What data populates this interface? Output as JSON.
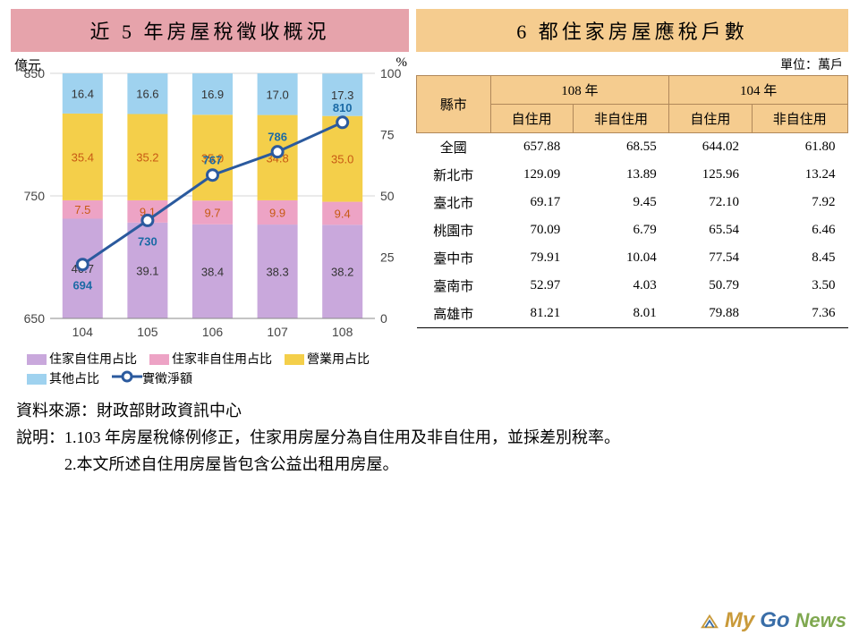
{
  "left": {
    "title": "近 5 年房屋稅徵收概況",
    "y_left_label": "億元",
    "y_right_label": "%",
    "y_left": {
      "min": 650,
      "max": 850,
      "ticks": [
        650,
        750,
        850
      ]
    },
    "y_right": {
      "min": 0,
      "max": 100,
      "ticks": [
        0,
        25,
        50,
        75,
        100
      ]
    },
    "x_categories": [
      "104",
      "105",
      "106",
      "107",
      "108"
    ],
    "stacked_series": [
      {
        "key": "self",
        "label": "住家自住用占比",
        "color": "#c9a8dc",
        "values": [
          40.7,
          39.1,
          38.4,
          38.3,
          38.2
        ]
      },
      {
        "key": "nonself",
        "label": "住家非自住用占比",
        "color": "#eda3c5",
        "values": [
          7.5,
          9.1,
          9.7,
          9.9,
          9.4
        ]
      },
      {
        "key": "biz",
        "label": "營業用占比",
        "color": "#f4cf4a",
        "values": [
          35.4,
          35.2,
          35.0,
          34.8,
          35.0
        ]
      },
      {
        "key": "other",
        "label": "其他占比",
        "color": "#9fd2ef",
        "values": [
          16.4,
          16.6,
          16.9,
          17.0,
          17.3
        ]
      }
    ],
    "line_series": {
      "label": "實徵淨額",
      "color": "#2b5a9e",
      "marker_fill": "#ffffff",
      "marker_stroke": "#2b5a9e",
      "values": [
        694,
        730,
        767,
        786,
        810
      ]
    },
    "chart_bg": "#ffffff",
    "grid_color": "#d6d6d6",
    "bar_width_ratio": 0.62
  },
  "right": {
    "title": "6 都住家房屋應稅戶數",
    "unit": "單位：萬戶",
    "header_row1": [
      "縣市",
      "108 年",
      "104 年"
    ],
    "header_row2": [
      "自住用",
      "非自住用",
      "自住用",
      "非自住用"
    ],
    "rows": [
      {
        "city": "全國",
        "v": [
          657.88,
          68.55,
          644.02,
          61.8
        ]
      },
      {
        "city": "新北市",
        "v": [
          129.09,
          13.89,
          125.96,
          13.24
        ]
      },
      {
        "city": "臺北市",
        "v": [
          69.17,
          9.45,
          72.1,
          7.92
        ]
      },
      {
        "city": "桃園市",
        "v": [
          70.09,
          6.79,
          65.54,
          6.46
        ]
      },
      {
        "city": "臺中市",
        "v": [
          79.91,
          10.04,
          77.54,
          8.45
        ]
      },
      {
        "city": "臺南市",
        "v": [
          52.97,
          4.03,
          50.79,
          3.5
        ]
      },
      {
        "city": "高雄市",
        "v": [
          81.21,
          8.01,
          79.88,
          7.36
        ]
      }
    ],
    "header_bg": "#f5cc8f",
    "header_border": "#b0885a"
  },
  "notes": {
    "source": "資料來源：財政部財政資訊中心",
    "lines": [
      "說明：1.103 年房屋稅條例修正，住家用房屋分為自住用及非自住用，並採差別稅率。",
      "　　　2.本文所述自住用房屋皆包含公益出租用房屋。"
    ]
  },
  "logo": {
    "t1": "My",
    "t2": "Go",
    "t3": "News"
  }
}
